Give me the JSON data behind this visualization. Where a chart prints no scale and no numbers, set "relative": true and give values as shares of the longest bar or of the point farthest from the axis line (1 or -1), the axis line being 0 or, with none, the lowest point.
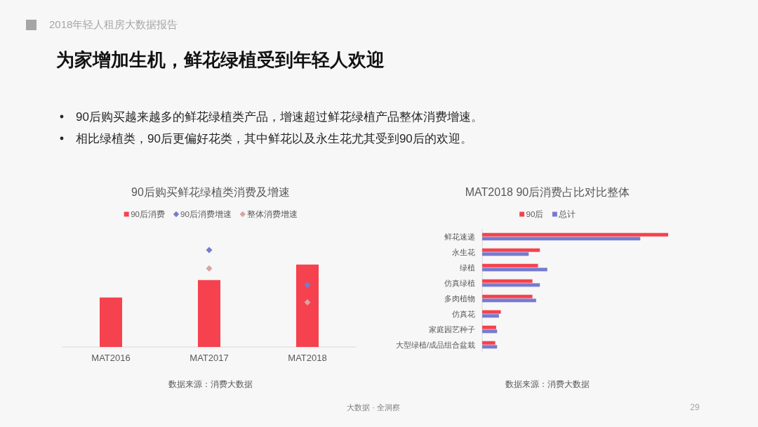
{
  "chart_data": [
    {
      "type": "other",
      "title": "为家增加生机，鲜花绿植受到年轻人欢迎",
      "subtitle": "2018年轻人租房大数据报告",
      "annotations": [
        "90后购买越来越多的鲜花绿植类产品，增速超过鲜花绿植产品整体消费增速。",
        "相比绿植类，90后更偏好花类，其中鲜花以及永生花尤其受到90后的欢迎。",
        "大数据 · 全洞察",
        "29"
      ]
    },
    {
      "type": "bar",
      "title": "90后购买鲜花绿植类消费及增速",
      "categories": [
        "MAT2016",
        "MAT2017",
        "MAT2018"
      ],
      "relative": true,
      "legend": "top",
      "marker": "diamond",
      "series": [
        {
          "name": "90后消费",
          "color": "#f5424e",
          "values": [
            0.51,
            0.69,
            0.85
          ]
        },
        {
          "name": "90后消费增速",
          "type": "scatter",
          "color": "#767bd0",
          "values": [
            null,
            1,
            0.64
          ]
        },
        {
          "name": "整体消费增速",
          "type": "scatter",
          "color": "#d6a4a4",
          "values": [
            null,
            0.81,
            0.46
          ]
        }
      ],
      "annotations": [
        "数据来源：消费大数据"
      ]
    },
    {
      "type": "bar",
      "orientation": "horizontal",
      "title": "MAT2018 90后消费占比对比整体",
      "categories": [
        "鲜花速递",
        "永生花",
        "绿植",
        "仿真绿植",
        "多肉植物",
        "仿真花",
        "家庭园艺种子",
        "大型绿植/成品组合盆栽"
      ],
      "relative": true,
      "legend": "top",
      "series": [
        {
          "name": "90后",
          "color": "#f5424e",
          "values": [
            1,
            0.31,
            0.3,
            0.27,
            0.27,
            0.1,
            0.075,
            0.07
          ]
        },
        {
          "name": "总计",
          "color": "#767bd0",
          "values": [
            0.85,
            0.25,
            0.35,
            0.31,
            0.29,
            0.09,
            0.08,
            0.08
          ]
        }
      ],
      "annotations": [
        "数据来源：消费大数据"
      ]
    }
  ]
}
